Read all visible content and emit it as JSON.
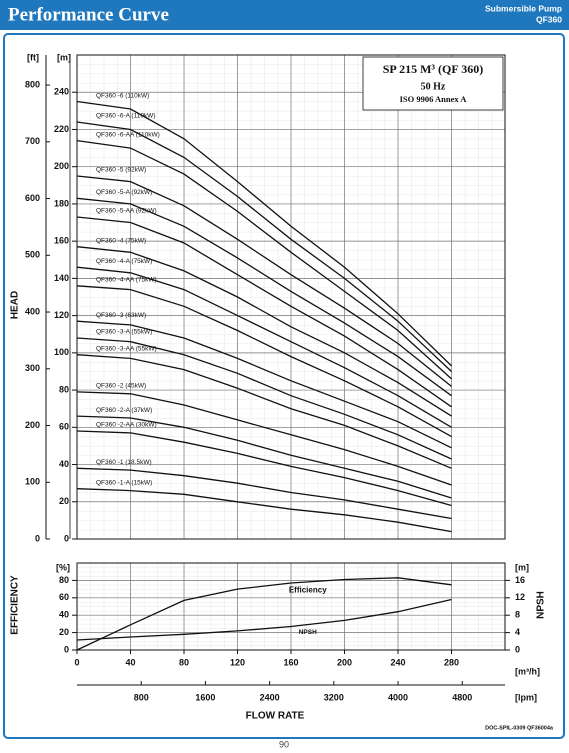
{
  "header": {
    "title": "Performance Curve",
    "subtitle_1": "Submersible Pump",
    "subtitle_2": "QF360"
  },
  "chart_data": [
    {
      "type": "line",
      "info_box": [
        "SP 215 M³ (QF 360)",
        "50 Hz",
        "ISO 9906 Annex A"
      ],
      "ylabel": "HEAD",
      "y_unit": "[m]",
      "y2_unit": "[ft]",
      "x": [
        0,
        40,
        80,
        120,
        160,
        200,
        240,
        280
      ],
      "xlim": [
        0,
        320
      ],
      "xticks": [
        0,
        40,
        80,
        120,
        160,
        200,
        240,
        280
      ],
      "ylim": [
        0,
        260
      ],
      "yticks": [
        0,
        20,
        40,
        60,
        80,
        100,
        120,
        140,
        160,
        180,
        200,
        220,
        240
      ],
      "y2lim": [
        0,
        853
      ],
      "y2ticks": [
        0,
        100,
        200,
        300,
        400,
        500,
        600,
        700,
        800
      ],
      "grid": true,
      "series": [
        {
          "name": "QF360 -6 (110kW)",
          "color": "#111111",
          "values": [
            235,
            231,
            215,
            192,
            168,
            146,
            121,
            93
          ]
        },
        {
          "name": "QF360 -6-A (110kW)",
          "color": "#111111",
          "values": [
            224,
            220,
            205,
            184,
            161,
            140,
            117,
            90
          ]
        },
        {
          "name": "QF360 -6-AA (110kW)",
          "color": "#111111",
          "values": [
            214,
            210,
            196,
            176,
            154,
            133,
            112,
            86
          ]
        },
        {
          "name": "QF360 -5 (92kW)",
          "color": "#111111",
          "values": [
            195,
            192,
            179,
            161,
            142,
            124,
            105,
            82
          ]
        },
        {
          "name": "QF360 -5-A (92kW)",
          "color": "#111111",
          "values": [
            183,
            180,
            168,
            151,
            133,
            116,
            98,
            77
          ]
        },
        {
          "name": "QF360 -5-AA (92kW)",
          "color": "#111111",
          "values": [
            173,
            170,
            159,
            142,
            125,
            109,
            91,
            71
          ]
        },
        {
          "name": "QF360 -4 (75kW)",
          "color": "#111111",
          "values": [
            157,
            154,
            144,
            130,
            114,
            100,
            84,
            66
          ]
        },
        {
          "name": "QF360 -4-A (75kW)",
          "color": "#111111",
          "values": [
            146,
            143,
            134,
            120,
            106,
            92,
            77,
            60
          ]
        },
        {
          "name": "QF360 -4-AA (75kW)",
          "color": "#111111",
          "values": [
            136,
            134,
            125,
            112,
            98,
            85,
            71,
            55
          ]
        },
        {
          "name": "QF360 -3 (63kW)",
          "color": "#111111",
          "values": [
            117,
            115,
            108,
            97,
            85,
            74,
            63,
            49
          ]
        },
        {
          "name": "QF360 -3-A (55kW)",
          "color": "#111111",
          "values": [
            108,
            106,
            99,
            89,
            77,
            67,
            56,
            43
          ]
        },
        {
          "name": "QF360 -3-AA (55kW)",
          "color": "#111111",
          "values": [
            99,
            97,
            91,
            81,
            70,
            61,
            50,
            38
          ]
        },
        {
          "name": "QF360 -2 (45kW)",
          "color": "#111111",
          "values": [
            79,
            78,
            72,
            64,
            56,
            48,
            39,
            29
          ]
        },
        {
          "name": "QF360 -2-A (37kW)",
          "color": "#111111",
          "values": [
            66,
            65,
            60,
            53,
            45,
            38,
            31,
            22
          ]
        },
        {
          "name": "QF360 -2-AA (30kW)",
          "color": "#111111",
          "values": [
            58,
            57,
            52,
            46,
            39,
            33,
            26,
            18
          ]
        },
        {
          "name": "QF360 -1 (18.5kW)",
          "color": "#111111",
          "values": [
            38,
            37,
            34,
            30,
            25,
            21,
            16,
            11
          ]
        },
        {
          "name": "QF360 -1-A (15kW)",
          "color": "#111111",
          "values": [
            27,
            26,
            24,
            20,
            16,
            13,
            9,
            4
          ]
        }
      ]
    },
    {
      "type": "line",
      "ylabel": "EFFICIENCY",
      "y_unit": "[%]",
      "y2label": "NPSH",
      "y2_unit": "[m]",
      "xlabel": "FLOW RATE",
      "x_unit": "[m³/h]",
      "x2_unit": "[lpm]",
      "x": [
        0,
        40,
        80,
        120,
        160,
        200,
        240,
        280
      ],
      "xlim": [
        0,
        320
      ],
      "xticks": [
        0,
        40,
        80,
        120,
        160,
        200,
        240,
        280
      ],
      "x2lim": [
        0,
        5333
      ],
      "x2ticks": [
        800,
        1600,
        2400,
        3200,
        4000,
        4800
      ],
      "ylim": [
        0,
        100
      ],
      "yticks": [
        0,
        20,
        40,
        60,
        80
      ],
      "y2lim": [
        0,
        20
      ],
      "y2ticks": [
        0,
        4,
        8,
        12,
        16
      ],
      "grid": true,
      "series": [
        {
          "name": "Efficiency",
          "color": "#111111",
          "values": [
            0,
            29,
            57,
            70,
            77,
            81,
            83,
            75
          ]
        },
        {
          "name": "NPSH",
          "color": "#111111",
          "axis": "y2",
          "values": [
            2.3,
            3,
            3.6,
            4.4,
            5.4,
            6.8,
            8.8,
            11.6
          ]
        }
      ]
    }
  ],
  "footer": {
    "doc": "DOC-SPIL-0309 QF36004a",
    "page": "90"
  }
}
